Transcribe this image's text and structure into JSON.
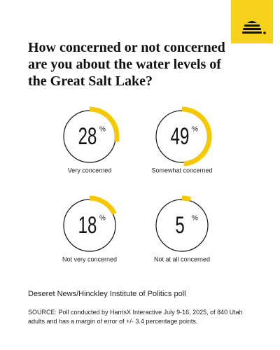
{
  "chart_data": {
    "type": "donut",
    "title": "How concerned or not concerned are you about the water levels of the Great Salt Lake?",
    "categories": [
      "Very concerned",
      "Somewhat concerned",
      "Not very concerned",
      "Not at all concerned"
    ],
    "values": [
      28,
      49,
      18,
      5
    ],
    "unit": "%",
    "color": "#f5c800",
    "poll": "Deseret News/Hinckley Institute of Politics poll",
    "source": "SOURCE: Poll conducted by HarrisX Interactive July 9-16, 2025, of 840 Utah adults and has a margin of error of +/- 3.4 percentage points."
  }
}
